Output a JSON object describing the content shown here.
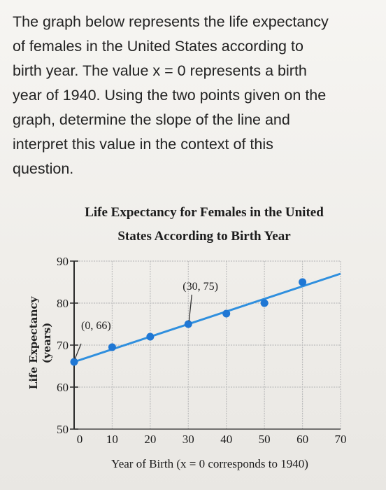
{
  "question": {
    "text": "The graph below represents the life expectancy\nof females in the United States according to\nbirth year. The value x = 0 represents a birth\nyear of 1940. Using the two points given on the\ngraph, determine the slope of the line and\ninterpret this value in the context of this\nquestion."
  },
  "chart_data": {
    "type": "scatter",
    "title_line1": "Life Expectancy for Females in the United",
    "title_line2": "States According to Birth Year",
    "xlabel": "Year of Birth (x = 0 corresponds to 1940)",
    "ylabel_line1": "Life Expectancy",
    "ylabel_line2": "(years)",
    "xlim": [
      0,
      70
    ],
    "ylim": [
      50,
      90
    ],
    "xticks": [
      0,
      10,
      20,
      30,
      40,
      50,
      60,
      70
    ],
    "yticks": [
      50,
      60,
      70,
      80,
      90
    ],
    "grid": true,
    "points": [
      {
        "x": 0,
        "y": 66
      },
      {
        "x": 10,
        "y": 69.5
      },
      {
        "x": 20,
        "y": 72
      },
      {
        "x": 30,
        "y": 75
      },
      {
        "x": 40,
        "y": 77.5
      },
      {
        "x": 50,
        "y": 80
      },
      {
        "x": 60,
        "y": 85
      }
    ],
    "line": {
      "x_start": 0,
      "y_start": 66,
      "x_end": 70,
      "y_end": 87
    },
    "annotations": [
      {
        "text": "(0, 66)",
        "x": 0,
        "y": 66
      },
      {
        "text": "(30, 75)",
        "x": 30,
        "y": 75
      }
    ],
    "colors": {
      "line": "#2f8fde",
      "point": "#1f77d4",
      "grid": "#bdbdbd",
      "axis": "#2a2a2a"
    }
  }
}
